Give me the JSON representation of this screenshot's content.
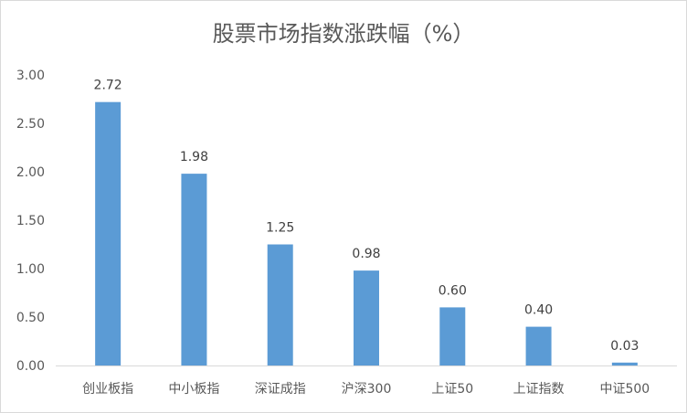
{
  "chart_data": {
    "type": "bar",
    "title": "股票市场指数涨跌幅（%）",
    "xlabel": "",
    "ylabel": "",
    "categories": [
      "创业板指",
      "中小板指",
      "深证成指",
      "沪深300",
      "上证50",
      "上证指数",
      "中证500"
    ],
    "values": [
      2.72,
      1.98,
      1.25,
      0.98,
      0.6,
      0.4,
      0.03
    ],
    "data_labels": [
      "2.72",
      "1.98",
      "1.25",
      "0.98",
      "0.60",
      "0.40",
      "0.03"
    ],
    "ylim": [
      0,
      3
    ],
    "yticks": [
      0,
      0.5,
      1,
      1.5,
      2,
      2.5,
      3
    ],
    "ytick_labels": [
      "0.00",
      "0.50",
      "1.00",
      "1.50",
      "2.00",
      "2.50",
      "3.00"
    ],
    "grid": false,
    "bar_color": "#5B9BD5"
  }
}
